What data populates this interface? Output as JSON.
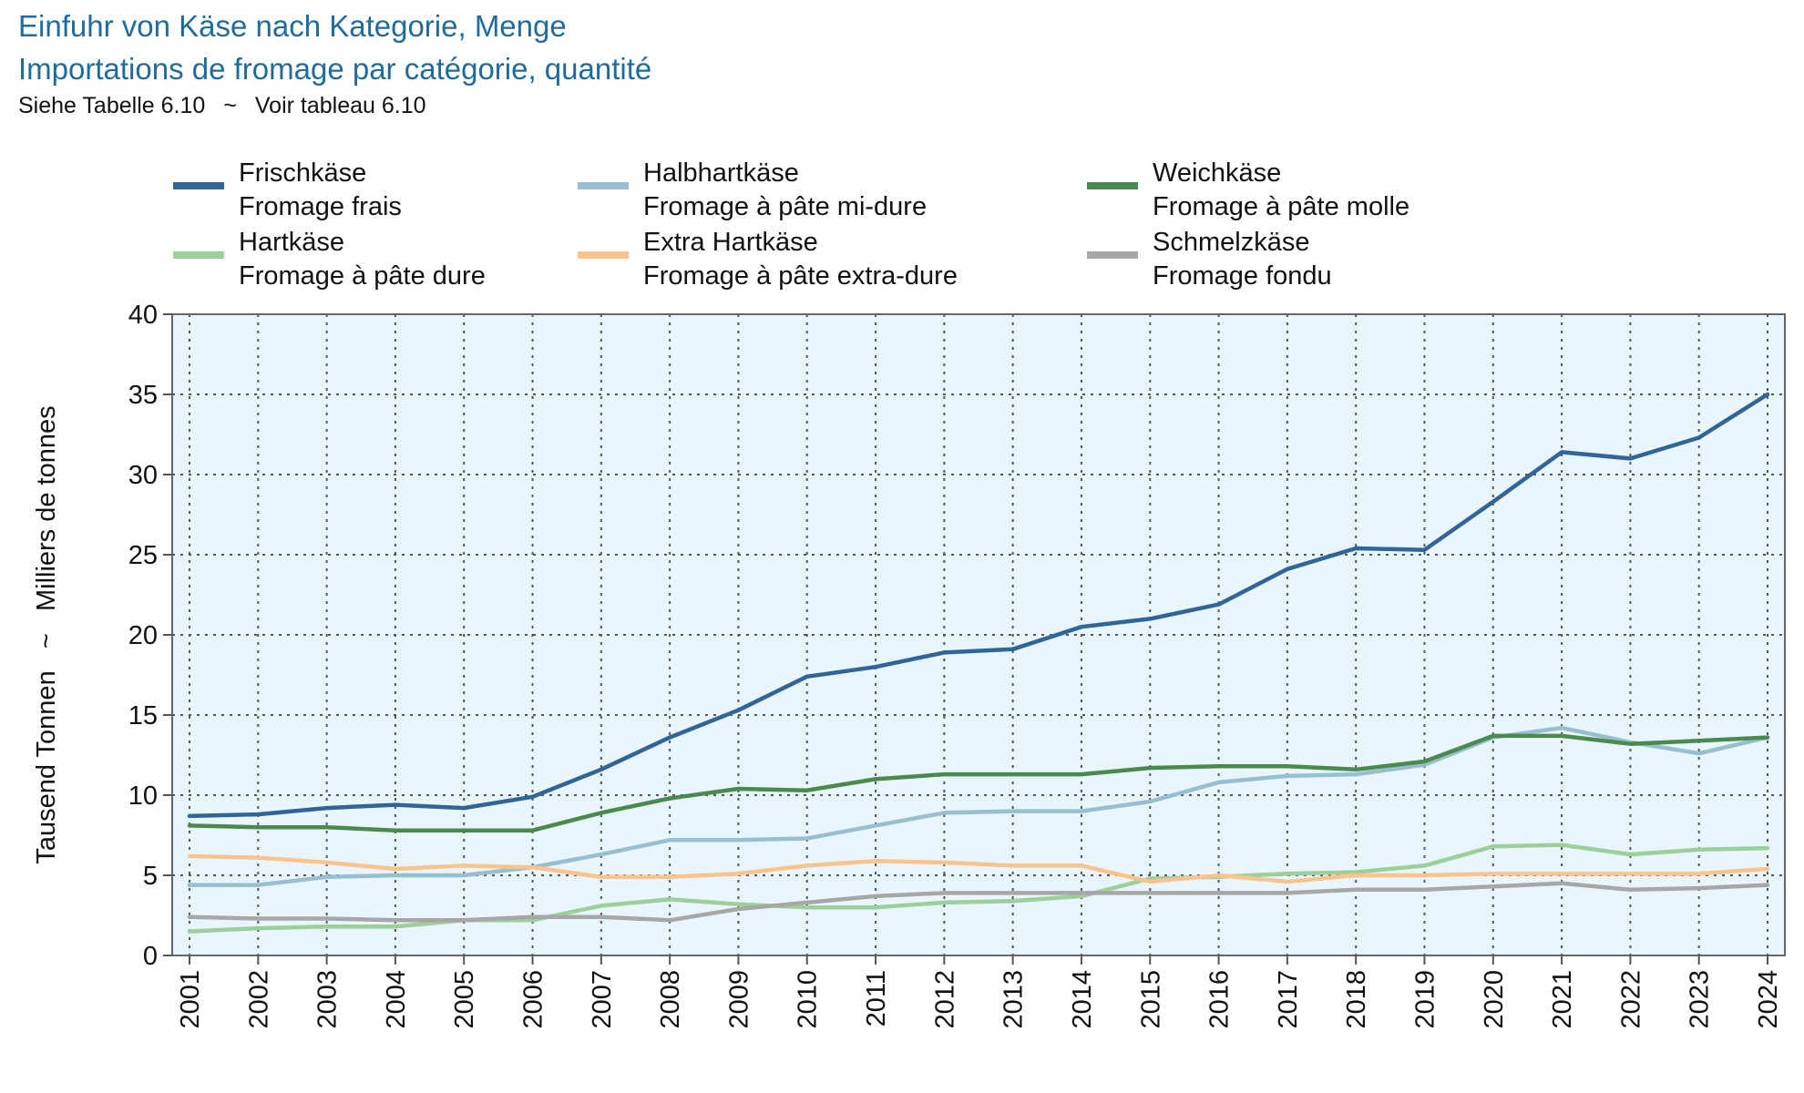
{
  "header": {
    "title_de": "Einfuhr von Käse nach Kategorie, Menge",
    "title_fr": "Importations de fromage par catégorie, quantité",
    "note_de": "Siehe Tabelle 6.10",
    "note_sep": "~",
    "note_fr": "Voir tableau 6.10"
  },
  "legend": [
    {
      "de": "Frischkäse",
      "fr": "Fromage frais",
      "color": "#326597"
    },
    {
      "de": "Halbhartkäse",
      "fr": "Fromage à pâte mi-dure",
      "color": "#98bfcf"
    },
    {
      "de": "Weichkäse",
      "fr": "Fromage à pâte molle",
      "color": "#4b8a4e"
    },
    {
      "de": "Hartkäse",
      "fr": "Fromage à pâte dure",
      "color": "#9ccf99"
    },
    {
      "de": "Extra Hartkäse",
      "fr": "Fromage à pâte extra-dure",
      "color": "#fbc48f"
    },
    {
      "de": "Schmelzkäse",
      "fr": "Fromage fondu",
      "color": "#a7a7a7"
    }
  ],
  "chart_data": {
    "type": "line",
    "ylabel": "Tausend Tonnen   ~   Milliers de tonnes",
    "ylim": [
      0,
      40
    ],
    "yticks": [
      0,
      5,
      10,
      15,
      20,
      25,
      30,
      35,
      40
    ],
    "grid": true,
    "plot_background": "#eaf6fd",
    "x": [
      "2001",
      "2002",
      "2003",
      "2004",
      "2005",
      "2006",
      "2007",
      "2008",
      "2009",
      "2010",
      "2011",
      "2012",
      "2013",
      "2014",
      "2015",
      "2016",
      "2017",
      "2018",
      "2019",
      "2020",
      "2021",
      "2022",
      "2023",
      "2024"
    ],
    "series": [
      {
        "name": "Frischkäse / Fromage frais",
        "color": "#326597",
        "values": [
          8.7,
          8.8,
          9.2,
          9.4,
          9.2,
          9.9,
          11.6,
          13.6,
          15.3,
          17.4,
          18.0,
          18.9,
          19.1,
          20.5,
          21.0,
          21.9,
          24.1,
          25.4,
          25.3,
          28.3,
          31.4,
          31.0,
          32.3,
          35.0
        ]
      },
      {
        "name": "Halbhartkäse / Fromage à pâte mi-dure",
        "color": "#98bfcf",
        "values": [
          4.4,
          4.4,
          4.9,
          5.0,
          5.0,
          5.5,
          6.3,
          7.2,
          7.2,
          7.3,
          8.1,
          8.9,
          9.0,
          9.0,
          9.6,
          10.8,
          11.2,
          11.3,
          11.9,
          13.6,
          14.2,
          13.3,
          12.6,
          13.6
        ]
      },
      {
        "name": "Weichkäse / Fromage à pâte molle",
        "color": "#4b8a4e",
        "values": [
          8.1,
          8.0,
          8.0,
          7.8,
          7.8,
          7.8,
          8.9,
          9.8,
          10.4,
          10.3,
          11.0,
          11.3,
          11.3,
          11.3,
          11.7,
          11.8,
          11.8,
          11.6,
          12.1,
          13.7,
          13.7,
          13.2,
          13.4,
          13.6
        ]
      },
      {
        "name": "Hartkäse / Fromage à pâte dure",
        "color": "#9ccf99",
        "values": [
          1.5,
          1.7,
          1.8,
          1.8,
          2.2,
          2.2,
          3.1,
          3.5,
          3.2,
          3.0,
          3.0,
          3.3,
          3.4,
          3.7,
          4.8,
          4.9,
          5.1,
          5.2,
          5.6,
          6.8,
          6.9,
          6.3,
          6.6,
          6.7
        ]
      },
      {
        "name": "Extra Hartkäse / Fromage à pâte extra-dure",
        "color": "#fbc48f",
        "values": [
          6.2,
          6.1,
          5.8,
          5.4,
          5.6,
          5.5,
          4.9,
          4.9,
          5.1,
          5.6,
          5.9,
          5.8,
          5.6,
          5.6,
          4.6,
          5.0,
          4.6,
          5.0,
          5.0,
          5.1,
          5.1,
          5.1,
          5.1,
          5.4
        ]
      },
      {
        "name": "Schmelzkäse / Fromage fondu",
        "color": "#a7a7a7",
        "values": [
          2.4,
          2.3,
          2.3,
          2.2,
          2.2,
          2.4,
          2.4,
          2.2,
          2.9,
          3.3,
          3.7,
          3.9,
          3.9,
          3.9,
          3.9,
          3.9,
          3.9,
          4.1,
          4.1,
          4.3,
          4.5,
          4.1,
          4.2,
          4.4
        ]
      }
    ]
  }
}
